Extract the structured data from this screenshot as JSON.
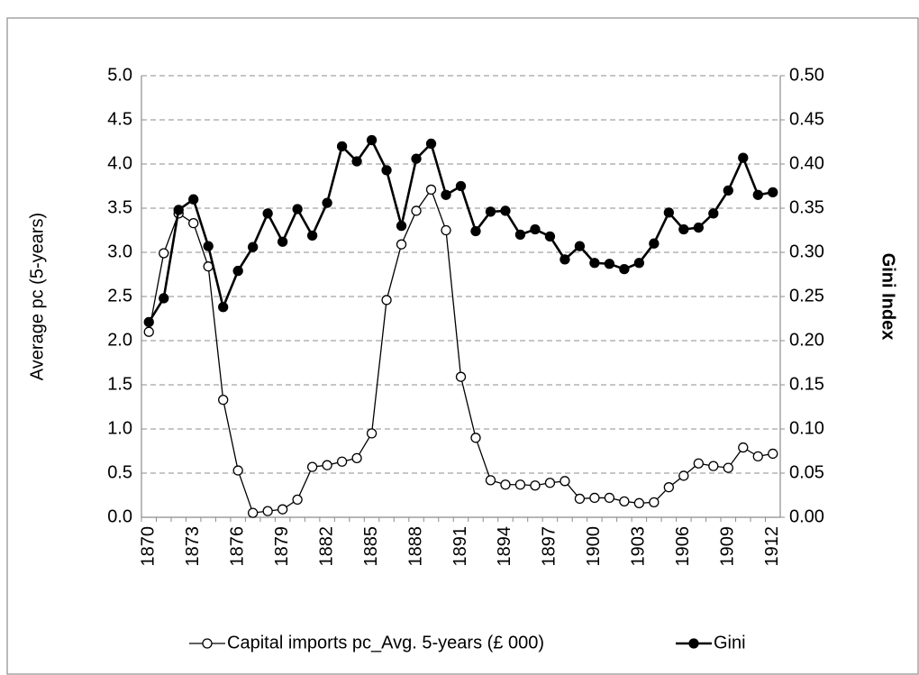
{
  "chart_data": {
    "type": "line",
    "categories": [
      "1870",
      null,
      null,
      "1873",
      null,
      null,
      "1876",
      null,
      null,
      "1879",
      null,
      null,
      "1882",
      null,
      null,
      "1885",
      null,
      null,
      "1888",
      null,
      null,
      "1891",
      null,
      null,
      "1894",
      null,
      null,
      "1897",
      null,
      null,
      "1900",
      null,
      null,
      "1903",
      null,
      null,
      "1906",
      null,
      null,
      "1909",
      null,
      null,
      "1912"
    ],
    "y_label": "Average pc (5-years)",
    "y2_label": "Gini Index",
    "ylim": [
      0,
      5
    ],
    "yticks": [
      {
        "value": 0,
        "label": "0.0"
      },
      {
        "value": 0.5,
        "label": "0.5"
      },
      {
        "value": 1,
        "label": "1.0"
      },
      {
        "value": 1.5,
        "label": "1.5"
      },
      {
        "value": 2,
        "label": "2.0"
      },
      {
        "value": 2.5,
        "label": "2.5"
      },
      {
        "value": 3,
        "label": "3.0"
      },
      {
        "value": 3.5,
        "label": "3.5"
      },
      {
        "value": 4,
        "label": "4.0"
      },
      {
        "value": 4.5,
        "label": "4.5"
      },
      {
        "value": 5,
        "label": "5.0"
      }
    ],
    "y2lim": [
      0,
      0.5
    ],
    "y2ticks": [
      {
        "value": 0,
        "label": "0.00"
      },
      {
        "value": 0.05,
        "label": "0.05"
      },
      {
        "value": 0.1,
        "label": "0.10"
      },
      {
        "value": 0.15,
        "label": "0.15"
      },
      {
        "value": 0.2,
        "label": "0.20"
      },
      {
        "value": 0.25,
        "label": "0.25"
      },
      {
        "value": 0.3,
        "label": "0.30"
      },
      {
        "value": 0.35,
        "label": "0.35"
      },
      {
        "value": 0.4,
        "label": "0.40"
      },
      {
        "value": 0.45,
        "label": "0.45"
      },
      {
        "value": 0.5,
        "label": "0.50"
      }
    ],
    "grid": true,
    "legend": "bottom",
    "series": [
      {
        "name": "Capital imports pc_Avg. 5-years (£ 000)",
        "color": "#000000",
        "marker": "open-circle",
        "values": [
          2.1,
          2.99,
          3.44,
          3.33,
          2.84,
          1.33,
          0.53,
          0.05,
          0.07,
          0.09,
          0.2,
          0.57,
          0.59,
          0.63,
          0.67,
          0.95,
          2.46,
          3.09,
          3.47,
          3.71,
          3.25,
          1.59,
          0.9,
          0.42,
          0.37,
          0.37,
          0.36,
          0.39,
          0.41,
          0.21,
          0.22,
          0.22,
          0.18,
          0.16,
          0.17,
          0.34,
          0.47,
          0.61,
          0.58,
          0.56,
          0.79,
          0.69,
          0.72
        ]
      },
      {
        "name": "Gini",
        "color": "#000000",
        "marker": "filled-circle",
        "axis": "y2",
        "values": [
          0.221,
          0.248,
          0.348,
          0.36,
          0.307,
          0.238,
          0.279,
          0.306,
          0.344,
          0.312,
          0.349,
          0.319,
          0.356,
          0.42,
          0.403,
          0.427,
          0.393,
          0.33,
          0.406,
          0.423,
          0.365,
          0.375,
          0.324,
          0.346,
          0.347,
          0.32,
          0.326,
          0.318,
          0.292,
          0.307,
          0.288,
          0.287,
          0.281,
          0.288,
          0.31,
          0.345,
          0.326,
          0.328,
          0.344,
          0.37,
          0.407,
          0.365,
          0.368
        ]
      }
    ]
  }
}
